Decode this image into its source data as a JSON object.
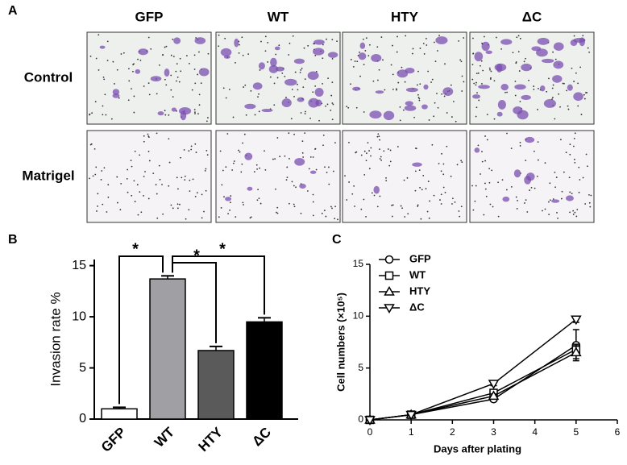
{
  "figure": {
    "panel_labels": [
      "A",
      "B",
      "C"
    ],
    "image_grid": {
      "columns": [
        "GFP",
        "WT",
        "HTY",
        "ΔC"
      ],
      "rows": [
        "Control",
        "Matrigel"
      ]
    }
  },
  "chart_data": [
    {
      "type": "bar",
      "y_label": "Invasion rate %",
      "categories": [
        "GFP",
        "WT",
        "HTY",
        "ΔC"
      ],
      "values": [
        1.0,
        13.7,
        6.7,
        9.5
      ],
      "errors": [
        0.15,
        0.3,
        0.4,
        0.4
      ],
      "colors": [
        "#ffffff",
        "#a0a0a4",
        "#5a5a5a",
        "#000000"
      ],
      "ylim": [
        0,
        15.6
      ],
      "yticks": [
        0,
        5,
        10,
        15
      ],
      "annotations": [
        "*",
        "*",
        "*"
      ]
    },
    {
      "type": "line",
      "x_label": "Days after plating",
      "y_label": "Cell numbers (×10⁵)",
      "x": [
        0,
        1,
        3,
        5
      ],
      "series": [
        {
          "name": "GFP",
          "color": "#000000",
          "marker": "circle",
          "values": [
            0,
            0.5,
            2.0,
            7.2
          ],
          "errors": [
            0.1,
            0.1,
            0.2,
            1.5
          ]
        },
        {
          "name": "WT",
          "color": "#000000",
          "marker": "square",
          "values": [
            0,
            0.5,
            2.6,
            6.8
          ],
          "errors": [
            0.1,
            0.1,
            0.2,
            0.5
          ]
        },
        {
          "name": "HTY",
          "color": "#000000",
          "marker": "triangle-up",
          "values": [
            0,
            0.5,
            2.3,
            6.5
          ],
          "errors": [
            0.1,
            0.1,
            0.2,
            0.6
          ]
        },
        {
          "name": "ΔC",
          "color": "#000000",
          "marker": "triangle-down",
          "values": [
            0,
            0.5,
            3.5,
            9.7
          ],
          "errors": [
            0.1,
            0.1,
            0.2,
            0.3
          ]
        }
      ],
      "xlim": [
        0,
        6
      ],
      "xticks": [
        0,
        1,
        2,
        3,
        4,
        5,
        6
      ],
      "ylim": [
        0,
        15
      ],
      "yticks": [
        0,
        5,
        10,
        15
      ],
      "legend": "upper left"
    }
  ]
}
